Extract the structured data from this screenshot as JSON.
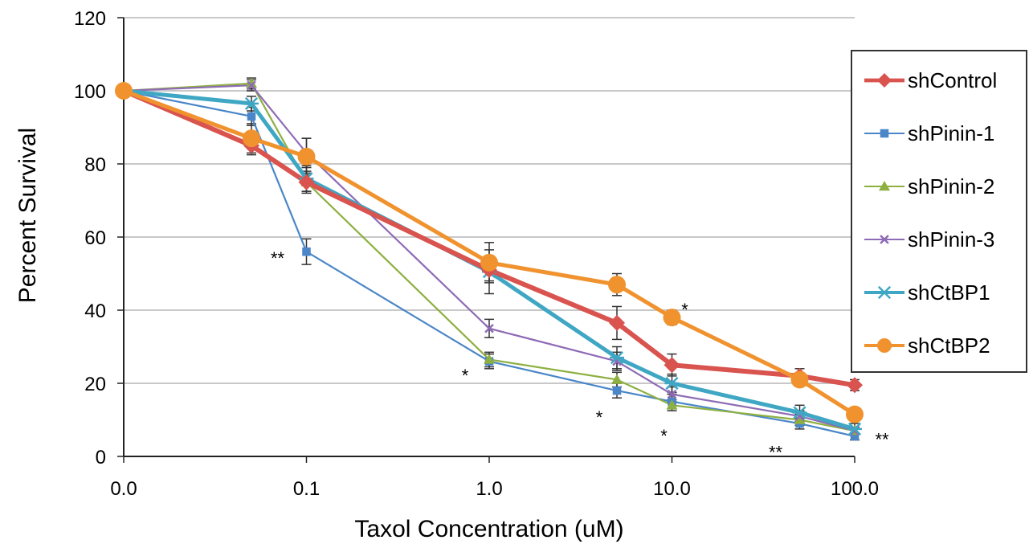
{
  "chart_data": {
    "type": "line",
    "xlabel": "Taxol Concentration (uM)",
    "ylabel": "Percent Survival",
    "ylim": [
      0,
      120
    ],
    "yticks": [
      "0",
      "20",
      "40",
      "60",
      "80",
      "100",
      "120"
    ],
    "xticks": [
      {
        "label": "0.0",
        "value": 0
      },
      {
        "label": "0.1",
        "value": 0.1
      },
      {
        "label": "1.0",
        "value": 1
      },
      {
        "label": "10.0",
        "value": 10
      },
      {
        "label": "100.0",
        "value": 100
      }
    ],
    "x": [
      0,
      0.05,
      0.1,
      1,
      5,
      10,
      50,
      100
    ],
    "grid": "horizontal",
    "legend_position": "right",
    "series": [
      {
        "name": "shControl",
        "color": "#d9534f",
        "marker": "diamond",
        "values": [
          100,
          85,
          75,
          51,
          36.5,
          25,
          22,
          19.5
        ],
        "errors": [
          1,
          2.5,
          2.5,
          3,
          4.5,
          3,
          2,
          1.5
        ]
      },
      {
        "name": "shPinin-1",
        "color": "#4a86c8",
        "marker": "square",
        "values": [
          100,
          93,
          56,
          26,
          18,
          15,
          9,
          5.5
        ],
        "errors": [
          1,
          2.5,
          3.5,
          2,
          2,
          2,
          1.5,
          1
        ]
      },
      {
        "name": "shPinin-2",
        "color": "#8db041",
        "marker": "triangle",
        "values": [
          100,
          102,
          75,
          26.5,
          21,
          14,
          10,
          7
        ],
        "errors": [
          1,
          1.5,
          3,
          2,
          2,
          1.5,
          1.5,
          1
        ]
      },
      {
        "name": "shPinin-3",
        "color": "#8e6bb5",
        "marker": "x",
        "values": [
          100,
          101.5,
          83,
          35,
          26,
          17,
          11,
          7
        ],
        "errors": [
          1,
          1.5,
          4,
          2.5,
          2.5,
          2,
          1.5,
          1
        ]
      },
      {
        "name": "shCtBP1",
        "color": "#3fa7c4",
        "marker": "asterisk",
        "values": [
          100,
          96.5,
          76,
          50.5,
          27,
          20,
          12,
          7.5
        ],
        "errors": [
          1,
          2,
          3.5,
          6,
          3,
          2.5,
          2,
          1.5
        ]
      },
      {
        "name": "shCtBP2",
        "color": "#f0922e",
        "marker": "circle",
        "values": [
          100,
          87,
          82,
          53,
          47,
          38,
          21,
          11.5
        ],
        "errors": [
          1,
          4,
          5,
          5.5,
          3,
          2,
          1.5,
          1.5
        ]
      }
    ],
    "annotations": [
      {
        "text": "**",
        "x": 0.1,
        "y": 56
      },
      {
        "text": "*",
        "x": 1,
        "y": 24
      },
      {
        "text": "*",
        "x": 5,
        "y": 12.5
      },
      {
        "text": "*",
        "x": 10,
        "y": 7.5
      },
      {
        "text": "*",
        "x": 10,
        "y": 42
      },
      {
        "text": "**",
        "x": 50,
        "y": 3
      },
      {
        "text": "**",
        "x": 100,
        "y": 6.5
      }
    ]
  }
}
